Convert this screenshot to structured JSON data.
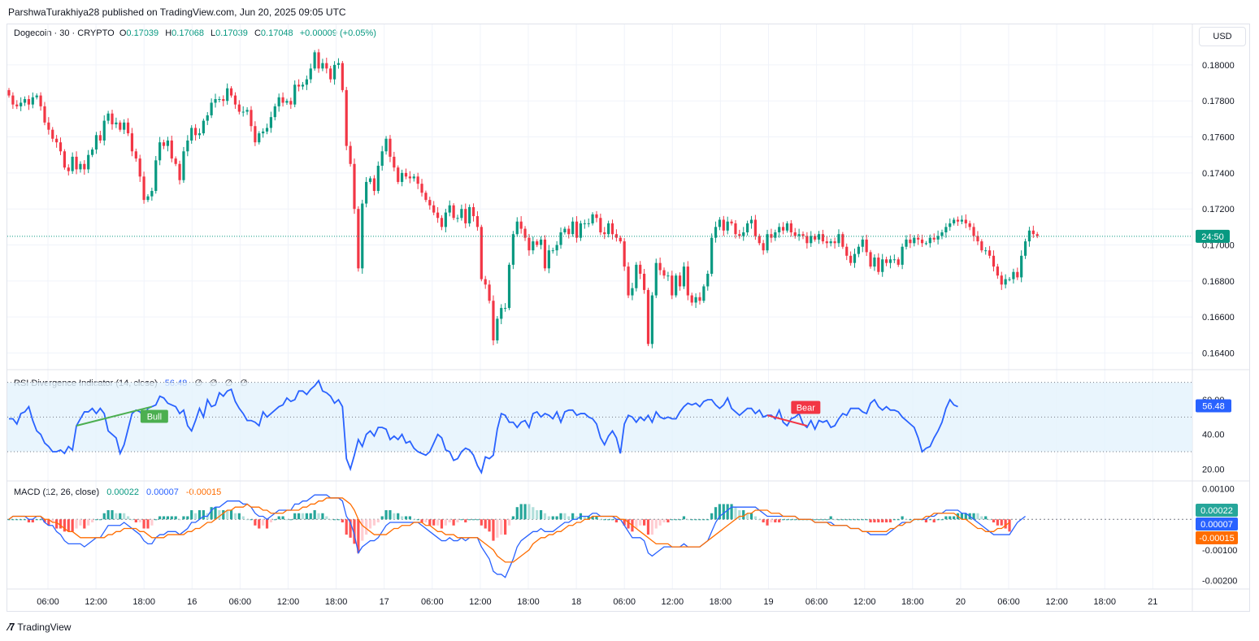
{
  "header": {
    "published_by": "ParshwaTurakhiya28 published on TradingView.com, Jun 20, 2025 09:05 UTC"
  },
  "currency_button": {
    "label": "USD"
  },
  "symbol_legend": {
    "symbol": "Dogecoin · 30 · CRYPTO",
    "open_label": "O",
    "open": "0.17039",
    "high_label": "H",
    "high": "0.17068",
    "low_label": "L",
    "low": "0.17039",
    "close_label": "C",
    "close": "0.17048",
    "change": "+0.00009 (+0.05%)"
  },
  "rsi_legend": {
    "title": "RSI Divergence Indicator (14, close)",
    "value": "56.48",
    "extras": [
      "∅",
      "∅",
      "∅",
      "∅"
    ]
  },
  "macd_legend": {
    "title": "MACD (12, 26, close)",
    "v1": "0.00022",
    "v2": "0.00007",
    "v3": "-0.00015"
  },
  "footer": {
    "brand": "TradingView"
  },
  "colors": {
    "up": "#089981",
    "down": "#f23645",
    "rsi": "#2962ff",
    "signal": "#ff6d00",
    "bull": "#4caf50",
    "bear": "#f23645",
    "band": "#e3f2fd",
    "grid": "#f0f3fa"
  },
  "chart_data": [
    {
      "type": "candlestick",
      "title": "Dogecoin · 30 · CRYPTO",
      "y_axis": {
        "ticks": [
          "0.18000",
          "0.17800",
          "0.17600",
          "0.17400",
          "0.17200",
          "0.17000",
          "0.16800",
          "0.16600",
          "0.16400"
        ],
        "ylim": [
          0.1633,
          0.1818
        ]
      },
      "last_price_label": "24:50",
      "last_price": 0.17048,
      "x_axis": {
        "ticks": [
          "06:00",
          "12:00",
          "18:00",
          "16",
          "06:00",
          "12:00",
          "18:00",
          "17",
          "06:00",
          "12:00",
          "18:00",
          "18",
          "06:00",
          "12:00",
          "18:00",
          "19",
          "06:00",
          "12:00",
          "18:00",
          "20",
          "06:00",
          "12:00",
          "18:00",
          "21"
        ]
      },
      "closes": [
        0.1783,
        0.1778,
        0.1777,
        0.1779,
        0.1781,
        0.1778,
        0.1782,
        0.1783,
        0.1777,
        0.1768,
        0.1764,
        0.1759,
        0.1757,
        0.1752,
        0.1743,
        0.1741,
        0.1749,
        0.1742,
        0.1745,
        0.1742,
        0.175,
        0.1753,
        0.1761,
        0.1758,
        0.1769,
        0.1773,
        0.1767,
        0.1768,
        0.1764,
        0.1768,
        0.1762,
        0.1752,
        0.1748,
        0.1738,
        0.1725,
        0.1727,
        0.173,
        0.1747,
        0.1757,
        0.1755,
        0.1758,
        0.1748,
        0.1745,
        0.1736,
        0.1752,
        0.1758,
        0.1765,
        0.1761,
        0.1762,
        0.1769,
        0.1772,
        0.1779,
        0.1781,
        0.1781,
        0.178,
        0.1787,
        0.1783,
        0.1778,
        0.1774,
        0.1774,
        0.1775,
        0.1766,
        0.1757,
        0.1762,
        0.1763,
        0.1765,
        0.1771,
        0.1777,
        0.1782,
        0.1779,
        0.178,
        0.1778,
        0.1789,
        0.1788,
        0.1789,
        0.1792,
        0.1798,
        0.1807,
        0.1798,
        0.1801,
        0.1798,
        0.1792,
        0.18,
        0.1801,
        0.1786,
        0.1755,
        0.1745,
        0.172,
        0.1687,
        0.1723,
        0.1735,
        0.1737,
        0.173,
        0.1744,
        0.1752,
        0.1759,
        0.1749,
        0.1743,
        0.1735,
        0.174,
        0.1738,
        0.1737,
        0.1738,
        0.1734,
        0.1729,
        0.1725,
        0.1722,
        0.1718,
        0.1715,
        0.171,
        0.1718,
        0.1722,
        0.1715,
        0.1715,
        0.172,
        0.1712,
        0.1721,
        0.1716,
        0.171,
        0.1681,
        0.1678,
        0.1669,
        0.1647,
        0.1659,
        0.1665,
        0.1665,
        0.1689,
        0.1706,
        0.1713,
        0.1709,
        0.1704,
        0.1697,
        0.1702,
        0.17,
        0.1703,
        0.1687,
        0.1697,
        0.1697,
        0.17,
        0.1707,
        0.1709,
        0.1706,
        0.1713,
        0.1704,
        0.1712,
        0.1712,
        0.1712,
        0.1717,
        0.1715,
        0.1707,
        0.1706,
        0.1712,
        0.1706,
        0.1704,
        0.1702,
        0.1688,
        0.1672,
        0.1676,
        0.1689,
        0.1684,
        0.1675,
        0.1645,
        0.1672,
        0.169,
        0.1686,
        0.1683,
        0.1683,
        0.1672,
        0.1683,
        0.1677,
        0.1688,
        0.1672,
        0.1668,
        0.1671,
        0.1669,
        0.1677,
        0.1684,
        0.1704,
        0.171,
        0.1714,
        0.1708,
        0.1713,
        0.1712,
        0.1706,
        0.1705,
        0.1707,
        0.1712,
        0.1714,
        0.1705,
        0.1701,
        0.1697,
        0.1706,
        0.1704,
        0.1707,
        0.171,
        0.1708,
        0.1712,
        0.1707,
        0.1705,
        0.1706,
        0.1705,
        0.1701,
        0.1705,
        0.1703,
        0.1706,
        0.1702,
        0.1701,
        0.1702,
        0.1701,
        0.1706,
        0.1699,
        0.1694,
        0.169,
        0.1695,
        0.1699,
        0.1703,
        0.1696,
        0.1688,
        0.1693,
        0.1685,
        0.1692,
        0.169,
        0.1692,
        0.1692,
        0.1689,
        0.1699,
        0.1703,
        0.1701,
        0.1704,
        0.1703,
        0.1701,
        0.1701,
        0.1704,
        0.1703,
        0.1705,
        0.1707,
        0.171,
        0.1712,
        0.1714,
        0.1713,
        0.1714,
        0.1712,
        0.171,
        0.1705,
        0.1702,
        0.1697,
        0.1697,
        0.1694,
        0.1688,
        0.1683,
        0.1678,
        0.1681,
        0.1681,
        0.1685,
        0.1682,
        0.1694,
        0.1702,
        0.1708,
        0.1706,
        0.1705
      ],
      "opens_follow_prev_close": true
    },
    {
      "type": "line",
      "title": "RSI Divergence Indicator (14, close)",
      "ylim": [
        15,
        75
      ],
      "y_ticks": [
        "60.00",
        "40.00",
        "20.00"
      ],
      "band": [
        30,
        70
      ],
      "current": 56.48,
      "annotations": [
        {
          "label": "Bull",
          "type": "bullish-divergence"
        },
        {
          "label": "Bear",
          "type": "bearish-divergence"
        }
      ],
      "values": [
        49,
        49,
        46,
        52,
        53,
        56,
        48,
        42,
        40,
        35,
        33,
        30,
        30,
        31,
        29,
        33,
        31,
        45,
        49,
        53,
        53,
        55,
        52,
        55,
        52,
        42,
        40,
        38,
        29,
        34,
        43,
        52,
        54,
        53,
        50,
        55,
        56,
        57,
        62,
        61,
        58,
        57,
        56,
        52,
        54,
        45,
        42,
        48,
        55,
        50,
        60,
        56,
        57,
        64,
        62,
        65,
        66,
        59,
        55,
        52,
        48,
        48,
        47,
        45,
        53,
        50,
        52,
        54,
        56,
        57,
        61,
        59,
        60,
        65,
        65,
        63,
        66,
        68,
        71,
        65,
        64,
        62,
        58,
        60,
        56,
        26,
        20,
        28,
        37,
        33,
        40,
        42,
        39,
        44,
        44,
        43,
        37,
        39,
        37,
        40,
        35,
        36,
        32,
        30,
        29,
        28,
        30,
        35,
        40,
        38,
        31,
        30,
        25,
        26,
        30,
        32,
        31,
        28,
        22,
        18,
        27,
        26,
        28,
        43,
        52,
        51,
        47,
        47,
        44,
        47,
        48,
        44,
        52,
        53,
        50,
        52,
        51,
        49,
        53,
        47,
        53,
        54,
        54,
        51,
        52,
        52,
        50,
        49,
        46,
        38,
        34,
        39,
        42,
        38,
        29,
        46,
        51,
        50,
        47,
        50,
        48,
        51,
        47,
        53,
        50,
        49,
        50,
        49,
        49,
        53,
        56,
        58,
        57,
        58,
        56,
        59,
        60,
        60,
        57,
        55,
        57,
        61,
        55,
        53,
        51,
        53,
        55,
        55,
        52,
        54,
        50,
        51,
        51,
        49,
        54,
        47,
        45,
        49,
        50,
        52,
        46,
        44,
        48,
        43,
        48,
        47,
        48,
        44,
        45,
        49,
        52,
        51,
        55,
        55,
        55,
        53,
        52,
        58,
        60,
        56,
        54,
        56,
        54,
        54,
        53,
        50,
        48,
        46,
        44,
        38,
        30,
        32,
        33,
        38,
        42,
        47,
        55,
        60,
        57,
        56
      ]
    },
    {
      "type": "line+histogram",
      "title": "MACD (12, 26, close)",
      "ylim": [
        -0.0022,
        0.00115
      ],
      "y_ticks": [
        "0.00100",
        "-0.00100",
        "-0.00200"
      ],
      "values_label": [
        "0.00022",
        "0.00007",
        "-0.00015"
      ],
      "macd": [
        0.0,
        0.0001,
        0.0001,
        0.0001,
        0.0001,
        0.0,
        0.0,
        0.0001,
        0.0001,
        -0.0001,
        -0.0002,
        -0.0002,
        -0.0004,
        -0.0005,
        -0.0007,
        -0.0008,
        -0.0008,
        -0.0008,
        -0.0008,
        -0.0009,
        -0.0008,
        -0.0007,
        -0.0006,
        -0.0006,
        -0.0004,
        -0.0002,
        -0.0002,
        -0.0002,
        -0.0002,
        -0.0001,
        -0.0002,
        -0.0003,
        -0.0004,
        -0.0005,
        -0.0007,
        -0.0008,
        -0.0008,
        -0.0006,
        -0.0005,
        -0.0005,
        -0.0004,
        -0.0004,
        -0.0004,
        -0.0005,
        -0.0004,
        -0.0003,
        -0.0001,
        -0.0001,
        -0.0,
        0.0001,
        0.0001,
        0.0003,
        0.0004,
        0.0004,
        0.0005,
        0.0006,
        0.0006,
        0.0006,
        0.0006,
        0.0005,
        0.0005,
        0.0004,
        0.0002,
        0.0001,
        0.0001,
        0.0,
        0.0001,
        0.0002,
        0.0003,
        0.0003,
        0.0003,
        0.0003,
        0.0005,
        0.0005,
        0.0006,
        0.0006,
        0.0007,
        0.0008,
        0.0008,
        0.0008,
        0.0008,
        0.0007,
        0.0007,
        0.0007,
        0.0006,
        0.0001,
        -0.0001,
        -0.0005,
        -0.0011,
        -0.0009,
        -0.0008,
        -0.0007,
        -0.0007,
        -0.0006,
        -0.0004,
        -0.0002,
        -0.0001,
        -0.0001,
        -0.0001,
        -0.0001,
        -0.0001,
        -0.0001,
        -0.0001,
        -0.0001,
        -0.0002,
        -0.0003,
        -0.0004,
        -0.0005,
        -0.0006,
        -0.0007,
        -0.0007,
        -0.0006,
        -0.0007,
        -0.0007,
        -0.0006,
        -0.0007,
        -0.0006,
        -0.0006,
        -0.0006,
        -0.0009,
        -0.0011,
        -0.0013,
        -0.0017,
        -0.0018,
        -0.0018,
        -0.0019,
        -0.0016,
        -0.0013,
        -0.0009,
        -0.0007,
        -0.0006,
        -0.0005,
        -0.0004,
        -0.0004,
        -0.0003,
        -0.0004,
        -0.0004,
        -0.0004,
        -0.0003,
        -0.0002,
        -0.0001,
        -0.0001,
        0.0,
        0.0,
        0.0001,
        0.0001,
        0.0001,
        0.0002,
        0.0002,
        0.0001,
        0.0001,
        0.0001,
        0.0001,
        0.0,
        -0.0,
        -0.0002,
        -0.0004,
        -0.0006,
        -0.0006,
        -0.0006,
        -0.0007,
        -0.0011,
        -0.0012,
        -0.0011,
        -0.001,
        -0.0009,
        -0.0009,
        -0.0009,
        -0.0009,
        -0.0009,
        -0.0008,
        -0.0009,
        -0.0009,
        -0.0009,
        -0.0009,
        -0.0008,
        -0.0007,
        -0.0004,
        -0.0001,
        0.0001,
        0.0002,
        0.0003,
        0.0004,
        0.0004,
        0.0004,
        0.0004,
        0.0004,
        0.0004,
        0.0004,
        0.0003,
        0.0002,
        0.0001,
        0.0001,
        0.0001,
        0.0001,
        0.0001,
        0.0001,
        0.0001,
        0.0001,
        0.0,
        0.0,
        -0.0,
        -0.0,
        -0.0001,
        -0.0001,
        -0.0001,
        -0.0001,
        -0.0001,
        -0.0002,
        -0.0002,
        -0.0002,
        -0.0002,
        -0.0003,
        -0.0003,
        -0.0003,
        -0.0004,
        -0.0004,
        -0.0005,
        -0.0005,
        -0.0005,
        -0.0005,
        -0.0005,
        -0.0004,
        -0.0003,
        -0.0002,
        -0.0001,
        -0.0001,
        -0.0001,
        -0.0,
        -0.0,
        0.0,
        0.0,
        0.0001,
        0.0001,
        0.0002,
        0.0002,
        0.0003,
        0.0003,
        0.0003,
        0.0003,
        0.0002,
        0.0002,
        0.0001,
        0.0,
        -0.0001,
        -0.0002,
        -0.0003,
        -0.0004,
        -0.0005,
        -0.0005,
        -0.0005,
        -0.0005,
        -0.0005,
        -0.0003,
        -0.0001,
        0.0,
        0.0001
      ],
      "signal": [
        0.0,
        0.0001,
        0.0001,
        0.0001,
        0.0001,
        0.0001,
        0.0001,
        0.0001,
        0.0001,
        0.0,
        -0.0,
        -0.0001,
        -0.0001,
        -0.0002,
        -0.0003,
        -0.0004,
        -0.0004,
        -0.0005,
        -0.0006,
        -0.0006,
        -0.0006,
        -0.0006,
        -0.0006,
        -0.0006,
        -0.0006,
        -0.0005,
        -0.0005,
        -0.0004,
        -0.0004,
        -0.0003,
        -0.0003,
        -0.0003,
        -0.0003,
        -0.0004,
        -0.0004,
        -0.0005,
        -0.0006,
        -0.0006,
        -0.0006,
        -0.0006,
        -0.0005,
        -0.0005,
        -0.0005,
        -0.0005,
        -0.0005,
        -0.0004,
        -0.0004,
        -0.0003,
        -0.0003,
        -0.0002,
        -0.0001,
        -0.0001,
        0.0,
        0.0001,
        0.0002,
        0.0003,
        0.0003,
        0.0004,
        0.0004,
        0.0004,
        0.0005,
        0.0004,
        0.0004,
        0.0004,
        0.0003,
        0.0003,
        0.0002,
        0.0002,
        0.0002,
        0.0002,
        0.0003,
        0.0003,
        0.0003,
        0.0003,
        0.0004,
        0.0004,
        0.0005,
        0.0005,
        0.0006,
        0.0006,
        0.0007,
        0.0007,
        0.0007,
        0.0007,
        0.0007,
        0.0006,
        0.0005,
        0.0003,
        0.0,
        -0.0002,
        -0.0003,
        -0.0004,
        -0.0005,
        -0.0005,
        -0.0005,
        -0.0005,
        -0.0004,
        -0.0003,
        -0.0003,
        -0.0002,
        -0.0002,
        -0.0002,
        -0.0001,
        -0.0001,
        -0.0001,
        -0.0002,
        -0.0002,
        -0.0003,
        -0.0004,
        -0.0004,
        -0.0005,
        -0.0005,
        -0.0005,
        -0.0006,
        -0.0006,
        -0.0006,
        -0.0006,
        -0.0006,
        -0.0006,
        -0.0007,
        -0.0008,
        -0.0009,
        -0.001,
        -0.0012,
        -0.0013,
        -0.0014,
        -0.0014,
        -0.0014,
        -0.0013,
        -0.0012,
        -0.0011,
        -0.001,
        -0.0008,
        -0.0007,
        -0.0006,
        -0.0006,
        -0.0005,
        -0.0005,
        -0.0004,
        -0.0004,
        -0.0003,
        -0.0002,
        -0.0002,
        -0.0001,
        -0.0001,
        -0.0,
        0.0,
        0.0001,
        0.0001,
        0.0001,
        0.0001,
        0.0001,
        0.0001,
        0.0001,
        0.0,
        -0.0,
        -0.0001,
        -0.0002,
        -0.0003,
        -0.0004,
        -0.0005,
        -0.0006,
        -0.0007,
        -0.0008,
        -0.0008,
        -0.0008,
        -0.0008,
        -0.0009,
        -0.0009,
        -0.0009,
        -0.0009,
        -0.0009,
        -0.0009,
        -0.0009,
        -0.0009,
        -0.0008,
        -0.0007,
        -0.0006,
        -0.0005,
        -0.0004,
        -0.0003,
        -0.0002,
        -0.0001,
        0.0,
        0.0001,
        0.0001,
        0.0002,
        0.0002,
        0.0003,
        0.0003,
        0.0003,
        0.0003,
        0.0002,
        0.0002,
        0.0002,
        0.0001,
        0.0001,
        0.0001,
        0.0001,
        0.0,
        0.0,
        -0.0,
        -0.0,
        -0.0001,
        -0.0001,
        -0.0001,
        -0.0001,
        -0.0002,
        -0.0002,
        -0.0002,
        -0.0002,
        -0.0002,
        -0.0003,
        -0.0003,
        -0.0003,
        -0.0004,
        -0.0004,
        -0.0004,
        -0.0004,
        -0.0004,
        -0.0004,
        -0.0004,
        -0.0003,
        -0.0003,
        -0.0002,
        -0.0002,
        -0.0001,
        -0.0001,
        -0.0,
        0.0,
        0.0,
        0.0001,
        0.0001,
        0.0002,
        0.0002,
        0.0002,
        0.0002,
        0.0002,
        0.0002,
        0.0001,
        0.0,
        -0.0,
        -0.0001,
        -0.0002,
        -0.0003,
        -0.0003,
        -0.0004,
        -0.0004,
        -0.0004,
        -0.0003,
        -0.0003,
        -0.0002,
        -0.0001
      ]
    }
  ]
}
